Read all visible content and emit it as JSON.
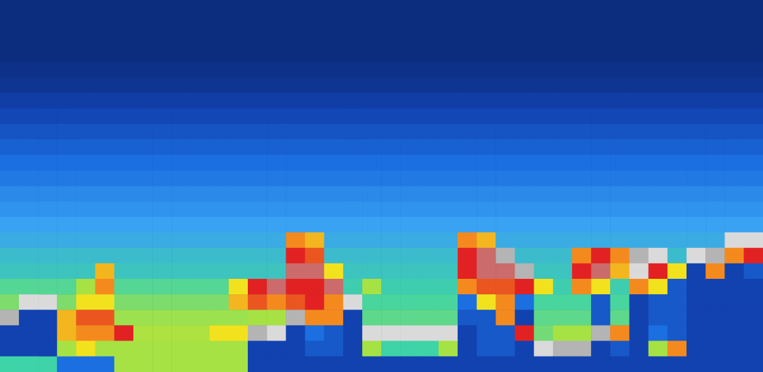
{
  "chart_data": {
    "type": "heatmap",
    "tick_labels": false,
    "grid": false,
    "zlim": [
      0,
      10
    ],
    "cells": [
      [
        0,
        0,
        0,
        0,
        0,
        0,
        0,
        0,
        0,
        0,
        0,
        0,
        0,
        0,
        0,
        0,
        0,
        0,
        0,
        0,
        0,
        0,
        0,
        0,
        0,
        0,
        0,
        0,
        0,
        0,
        0,
        0,
        0,
        0,
        0,
        0,
        0,
        0,
        0,
        0
      ],
      [
        0,
        0,
        0,
        0,
        0,
        0,
        0,
        0,
        0,
        0,
        0,
        0,
        0,
        0,
        0,
        0,
        0,
        0,
        0,
        0,
        0,
        0,
        0,
        0,
        0,
        0,
        0,
        0,
        0,
        0,
        0,
        0,
        0,
        0,
        0,
        0,
        0,
        0,
        0,
        0
      ],
      [
        0,
        0,
        0,
        0,
        0,
        0,
        0,
        0,
        0,
        0,
        0,
        0,
        0,
        0,
        0,
        0,
        0,
        0,
        0,
        0,
        0,
        0,
        0,
        0,
        0,
        0,
        0,
        0,
        0,
        0,
        0,
        0,
        0,
        0,
        0,
        0,
        0,
        0,
        0,
        0
      ],
      [
        0,
        0,
        0,
        0,
        0,
        0,
        0,
        0,
        0,
        0,
        0,
        0,
        0,
        0,
        0,
        0,
        0,
        0,
        0,
        0,
        0,
        0,
        0,
        0,
        0,
        0,
        0,
        0,
        0,
        0,
        0,
        0,
        0,
        0,
        0,
        0,
        0,
        0,
        0,
        0
      ],
      [
        0.2,
        0.2,
        0.2,
        0.2,
        0.2,
        0.2,
        0.2,
        0.2,
        0.2,
        0.2,
        0.2,
        0.2,
        0.2,
        0.2,
        0.2,
        0.2,
        0.2,
        0.2,
        0.2,
        0.2,
        0.2,
        0.2,
        0.2,
        0.2,
        0.2,
        0.2,
        0.2,
        0.2,
        0.2,
        0.2,
        0.2,
        0.2,
        0.2,
        0.2,
        0.2,
        0.2,
        0.2,
        0.2,
        0.2,
        0.2
      ],
      [
        0.4,
        0.4,
        0.4,
        0.4,
        0.4,
        0.4,
        0.4,
        0.4,
        0.4,
        0.4,
        0.4,
        0.4,
        0.4,
        0.4,
        0.4,
        0.4,
        0.4,
        0.4,
        0.4,
        0.4,
        0.4,
        0.4,
        0.4,
        0.4,
        0.4,
        0.4,
        0.4,
        0.4,
        0.4,
        0.4,
        0.4,
        0.4,
        0.4,
        0.4,
        0.4,
        0.4,
        0.4,
        0.4,
        0.4,
        0.4
      ],
      [
        0.8,
        0.8,
        0.8,
        0.8,
        0.8,
        0.8,
        0.8,
        0.8,
        0.8,
        0.8,
        0.8,
        0.8,
        0.8,
        0.8,
        0.8,
        0.8,
        0.8,
        0.8,
        0.8,
        0.8,
        0.8,
        0.8,
        0.8,
        0.8,
        0.8,
        0.8,
        0.8,
        0.8,
        0.8,
        0.8,
        0.8,
        0.8,
        0.8,
        0.8,
        0.8,
        0.8,
        0.8,
        0.8,
        0.8,
        0.8
      ],
      [
        1.1,
        1.1,
        1.1,
        1.1,
        1.1,
        1.1,
        1.1,
        1.1,
        1.1,
        1.1,
        1.1,
        1.1,
        1.1,
        1.1,
        1.1,
        1.1,
        1.1,
        1.1,
        1.1,
        1.1,
        1.1,
        1.1,
        1.1,
        1.1,
        1.1,
        1.1,
        1.1,
        1.1,
        1.1,
        1.1,
        1.1,
        1.1,
        1.1,
        1.1,
        1.1,
        1.1,
        1.1,
        1.1,
        1.1,
        1.1
      ],
      [
        1.4,
        1.4,
        1.4,
        1.4,
        1.4,
        1.4,
        1.4,
        1.4,
        1.4,
        1.4,
        1.4,
        1.4,
        1.4,
        1.4,
        1.4,
        1.4,
        1.4,
        1.4,
        1.4,
        1.4,
        1.4,
        1.4,
        1.4,
        1.4,
        1.4,
        1.4,
        1.4,
        1.4,
        1.4,
        1.4,
        1.4,
        1.4,
        1.4,
        1.4,
        1.4,
        1.4,
        1.4,
        1.4,
        1.4,
        1.4
      ],
      [
        1.7,
        1.7,
        1.7,
        1.7,
        1.7,
        1.7,
        1.7,
        1.7,
        1.7,
        1.7,
        1.7,
        1.7,
        1.7,
        1.7,
        1.7,
        1.7,
        1.7,
        1.7,
        1.7,
        1.7,
        1.7,
        1.7,
        1.7,
        1.7,
        1.7,
        1.7,
        1.7,
        1.7,
        1.7,
        1.7,
        1.7,
        1.7,
        1.7,
        1.7,
        1.7,
        1.7,
        1.7,
        1.7,
        1.7,
        1.7
      ],
      [
        2,
        2,
        2,
        2,
        2,
        2,
        2,
        2,
        2,
        2,
        2,
        2,
        2,
        2,
        2,
        2,
        2,
        2,
        2,
        2,
        2,
        2,
        2,
        2,
        2,
        2,
        2,
        2,
        2,
        2,
        2,
        2,
        2,
        2,
        2,
        2,
        2,
        2,
        2,
        2
      ],
      [
        2.2,
        2.2,
        2.2,
        2.2,
        2.2,
        2.2,
        2.2,
        2.2,
        2.2,
        2.2,
        2.2,
        2.2,
        2.2,
        2.2,
        2.2,
        2.2,
        2.2,
        2.2,
        2.2,
        2.2,
        2.2,
        2.2,
        2.2,
        2.2,
        2.2,
        2.2,
        2.2,
        2.2,
        2.2,
        2.2,
        2.2,
        2.2,
        2.2,
        2.2,
        2.2,
        2.2,
        2.2,
        2.2,
        2.2,
        2.2
      ],
      [
        2.5,
        2.5,
        2.5,
        2.5,
        2.5,
        2.5,
        2.5,
        2.5,
        2.5,
        2.5,
        2.5,
        2.5,
        2.5,
        2.5,
        2.5,
        2.5,
        2.5,
        2.5,
        2.5,
        2.5,
        2.5,
        2.5,
        2.5,
        2.5,
        2.5,
        2.5,
        2.5,
        2.5,
        2.5,
        2.5,
        2.5,
        2.5,
        2.5,
        2.5,
        2.5,
        2.5,
        2.5,
        2.5,
        2.5,
        2.5
      ],
      [
        2.7,
        2.7,
        2.7,
        2.7,
        2.7,
        2.7,
        2.7,
        2.7,
        2.7,
        2.7,
        2.7,
        2.7,
        2.7,
        2.7,
        2.7,
        2.7,
        2.7,
        2.7,
        2.7,
        2.7,
        2.7,
        2.7,
        2.7,
        2.7,
        2.7,
        2.7,
        2.7,
        2.7,
        2.7,
        2.7,
        2.7,
        2.7,
        2.7,
        2.7,
        2.7,
        2.7,
        2.7,
        2.7,
        2.7,
        2.7
      ],
      [
        3,
        3,
        3,
        3,
        3,
        3,
        3,
        3,
        3,
        3,
        3,
        3,
        3,
        3,
        3,
        3,
        3,
        3,
        3,
        3,
        3,
        3,
        3,
        3,
        3,
        3,
        3,
        3,
        3,
        3,
        3,
        3,
        3,
        3,
        3,
        3,
        3,
        3,
        3,
        3
      ],
      [
        3.2,
        3.2,
        3.2,
        3.2,
        3.2,
        3.2,
        3.2,
        3.2,
        3.2,
        3.2,
        3.2,
        3.2,
        3.2,
        3.2,
        3.2,
        7,
        6.5,
        3.2,
        3.2,
        3.2,
        3.2,
        3.2,
        3.2,
        3.2,
        7,
        6.5,
        3.2,
        3.2,
        3.2,
        3.2,
        3.2,
        3.2,
        3.2,
        3.2,
        3.2,
        3.2,
        3.2,
        3.2,
        9.5,
        9.5
      ],
      [
        3.5,
        3.5,
        3.5,
        3.5,
        3.5,
        3.5,
        3.5,
        3.5,
        3.5,
        3.5,
        3.5,
        3.5,
        3.5,
        3.5,
        3.5,
        8,
        7.5,
        3.5,
        3.5,
        3.5,
        3.5,
        3.5,
        3.5,
        3.5,
        8,
        8.5,
        9,
        3.5,
        3.5,
        3.5,
        7,
        8,
        7,
        9,
        9.5,
        3.5,
        9.5,
        9,
        7,
        8
      ],
      [
        3.7,
        3.7,
        3.7,
        3.7,
        3.7,
        6.5,
        3.7,
        3.7,
        3.7,
        3.7,
        3.7,
        3.7,
        3.7,
        3.7,
        3.7,
        8.5,
        8.5,
        6,
        3.7,
        3.7,
        3.7,
        3.7,
        3.7,
        3.7,
        8,
        8.5,
        8.5,
        9,
        3.7,
        3.7,
        8,
        8.5,
        6.5,
        9.5,
        8,
        6,
        1,
        7,
        1,
        1.5
      ],
      [
        4.2,
        4.2,
        4.2,
        4.2,
        5,
        7,
        4.2,
        4.2,
        4.2,
        4.2,
        4.2,
        4.2,
        6,
        8,
        8.5,
        8,
        8,
        8.5,
        3.9,
        5,
        3.9,
        3.9,
        3.9,
        3.9,
        7,
        7.5,
        7.5,
        8,
        6,
        3.9,
        7,
        6,
        3.9,
        7,
        6,
        1.5,
        1,
        1,
        1,
        1
      ],
      [
        4.6,
        9.5,
        9.5,
        4.6,
        6,
        6,
        4.6,
        4.6,
        4.6,
        4.6,
        4.6,
        4.6,
        6.5,
        7.5,
        7,
        7.5,
        8,
        7,
        9.5,
        4.1,
        4.1,
        4.1,
        4.1,
        4.1,
        2,
        6,
        7,
        2,
        4.1,
        4.1,
        4.1,
        1.5,
        4.1,
        1,
        1.5,
        1.5,
        1,
        1,
        1,
        1
      ],
      [
        9,
        1,
        1,
        6.5,
        7.5,
        7.5,
        4.9,
        4.9,
        4.9,
        4.9,
        4.9,
        4.9,
        4.9,
        5,
        5,
        9,
        7,
        7,
        1,
        4.3,
        4.3,
        4.3,
        4.3,
        4.3,
        1.5,
        1.5,
        7,
        1,
        4.3,
        4.3,
        4.3,
        1.5,
        4.3,
        1,
        1.5,
        1.5,
        1,
        1,
        1,
        1
      ],
      [
        1,
        1,
        1,
        6.5,
        7,
        7,
        8,
        5.1,
        5.1,
        5.1,
        5.1,
        6,
        6,
        9,
        9.5,
        1,
        2,
        1.5,
        1,
        9.5,
        9.5,
        9.5,
        9.5,
        9.5,
        1,
        1.5,
        1.5,
        8,
        4.5,
        5,
        5,
        9,
        7,
        1,
        2,
        1.5,
        1,
        1,
        1,
        1
      ],
      [
        1,
        1,
        1,
        5,
        6,
        5,
        5,
        5,
        5,
        5,
        5,
        5,
        5,
        1,
        1,
        1,
        1.5,
        1.5,
        1,
        5,
        4,
        4,
        4,
        5,
        1,
        1.5,
        1.5,
        1,
        9.5,
        9,
        9,
        1,
        1.5,
        1,
        5,
        7,
        1,
        1,
        1,
        1
      ],
      [
        4,
        4,
        4,
        2,
        2,
        2,
        5,
        5,
        5,
        5,
        5,
        5,
        5,
        1,
        1,
        1,
        1,
        1,
        1,
        1,
        1,
        1,
        1,
        1,
        1,
        1,
        1,
        1,
        1,
        1,
        1,
        1,
        1,
        1,
        1,
        1,
        1,
        1,
        1,
        1
      ]
    ]
  }
}
